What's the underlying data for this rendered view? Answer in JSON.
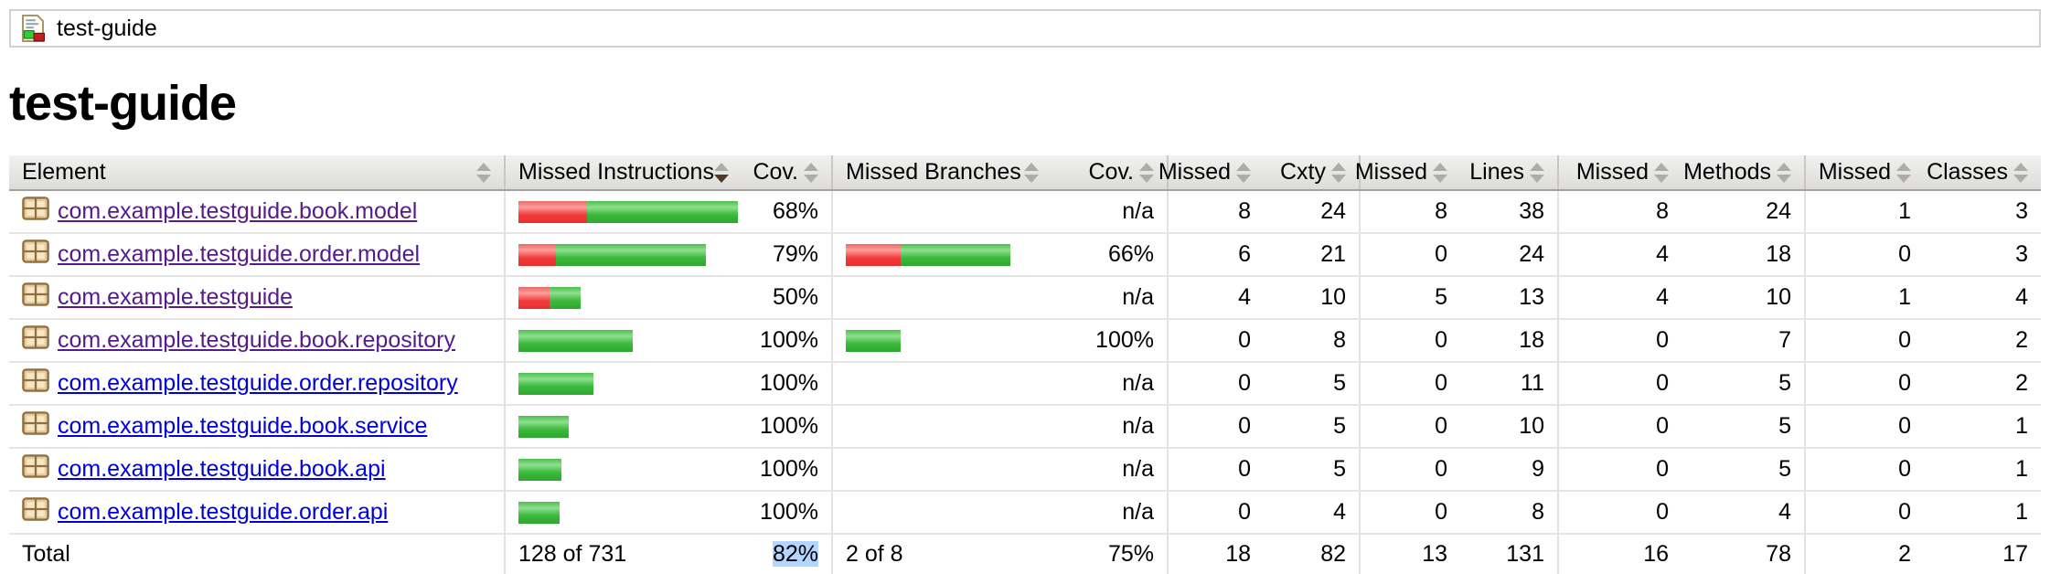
{
  "breadcrumb": {
    "title": "test-guide",
    "icon": "report-icon"
  },
  "page": {
    "heading": "test-guide"
  },
  "colors": {
    "link_unvisited": "#0000dd",
    "link_visited": "#551a8b",
    "selection_highlight": "#b4d5fd",
    "bar_red": "#f23d3d",
    "bar_green": "#3cba3c"
  },
  "table": {
    "headers": [
      {
        "label": "Element",
        "align": "left",
        "sort": "none"
      },
      {
        "label": "Missed Instructions",
        "align": "left",
        "sort": "desc"
      },
      {
        "label": "Cov.",
        "align": "right",
        "sort": "none"
      },
      {
        "label": "Missed Branches",
        "align": "left",
        "sort": "none"
      },
      {
        "label": "Cov.",
        "align": "right",
        "sort": "none"
      },
      {
        "label": "Missed",
        "align": "right",
        "sort": "none"
      },
      {
        "label": "Cxty",
        "align": "right",
        "sort": "none"
      },
      {
        "label": "Missed",
        "align": "right",
        "sort": "none"
      },
      {
        "label": "Lines",
        "align": "right",
        "sort": "none"
      },
      {
        "label": "Missed",
        "align": "right",
        "sort": "none"
      },
      {
        "label": "Methods",
        "align": "right",
        "sort": "none"
      },
      {
        "label": "Missed",
        "align": "right",
        "sort": "none"
      },
      {
        "label": "Classes",
        "align": "right",
        "sort": "none"
      }
    ],
    "rows": [
      {
        "element": "com.example.testguide.book.model",
        "visited": true,
        "instr_bar": {
          "red": 75,
          "green": 165
        },
        "instr_cov": "68%",
        "branch_bar": {
          "red": 0,
          "green": 0
        },
        "branch_cov": "n/a",
        "missed_cxty": "8",
        "cxty": "24",
        "missed_lines": "8",
        "lines": "38",
        "missed_methods": "8",
        "methods": "24",
        "missed_classes": "1",
        "classes": "3"
      },
      {
        "element": "com.example.testguide.order.model",
        "visited": true,
        "instr_bar": {
          "red": 41,
          "green": 164
        },
        "instr_cov": "79%",
        "branch_bar": {
          "red": 60,
          "green": 120
        },
        "branch_cov": "66%",
        "missed_cxty": "6",
        "cxty": "21",
        "missed_lines": "0",
        "lines": "24",
        "missed_methods": "4",
        "methods": "18",
        "missed_classes": "0",
        "classes": "3"
      },
      {
        "element": "com.example.testguide",
        "visited": true,
        "instr_bar": {
          "red": 34,
          "green": 34
        },
        "instr_cov": "50%",
        "branch_bar": {
          "red": 0,
          "green": 0
        },
        "branch_cov": "n/a",
        "missed_cxty": "4",
        "cxty": "10",
        "missed_lines": "5",
        "lines": "13",
        "missed_methods": "4",
        "methods": "10",
        "missed_classes": "1",
        "classes": "4"
      },
      {
        "element": "com.example.testguide.book.repository",
        "visited": true,
        "instr_bar": {
          "red": 0,
          "green": 125
        },
        "instr_cov": "100%",
        "branch_bar": {
          "red": 0,
          "green": 60
        },
        "branch_cov": "100%",
        "missed_cxty": "0",
        "cxty": "8",
        "missed_lines": "0",
        "lines": "18",
        "missed_methods": "0",
        "methods": "7",
        "missed_classes": "0",
        "classes": "2"
      },
      {
        "element": "com.example.testguide.order.repository",
        "visited": false,
        "instr_bar": {
          "red": 0,
          "green": 82
        },
        "instr_cov": "100%",
        "branch_bar": {
          "red": 0,
          "green": 0
        },
        "branch_cov": "n/a",
        "missed_cxty": "0",
        "cxty": "5",
        "missed_lines": "0",
        "lines": "11",
        "missed_methods": "0",
        "methods": "5",
        "missed_classes": "0",
        "classes": "2"
      },
      {
        "element": "com.example.testguide.book.service",
        "visited": false,
        "instr_bar": {
          "red": 0,
          "green": 55
        },
        "instr_cov": "100%",
        "branch_bar": {
          "red": 0,
          "green": 0
        },
        "branch_cov": "n/a",
        "missed_cxty": "0",
        "cxty": "5",
        "missed_lines": "0",
        "lines": "10",
        "missed_methods": "0",
        "methods": "5",
        "missed_classes": "0",
        "classes": "1"
      },
      {
        "element": "com.example.testguide.book.api",
        "visited": false,
        "instr_bar": {
          "red": 0,
          "green": 47
        },
        "instr_cov": "100%",
        "branch_bar": {
          "red": 0,
          "green": 0
        },
        "branch_cov": "n/a",
        "missed_cxty": "0",
        "cxty": "5",
        "missed_lines": "0",
        "lines": "9",
        "missed_methods": "0",
        "methods": "5",
        "missed_classes": "0",
        "classes": "1"
      },
      {
        "element": "com.example.testguide.order.api",
        "visited": false,
        "instr_bar": {
          "red": 0,
          "green": 45
        },
        "instr_cov": "100%",
        "branch_bar": {
          "red": 0,
          "green": 0
        },
        "branch_cov": "n/a",
        "missed_cxty": "0",
        "cxty": "4",
        "missed_lines": "0",
        "lines": "8",
        "missed_methods": "0",
        "methods": "4",
        "missed_classes": "0",
        "classes": "1"
      }
    ],
    "total": {
      "label": "Total",
      "instr": "128 of 731",
      "instr_cov": "82%",
      "instr_cov_selected": true,
      "branches": "2 of 8",
      "branch_cov": "75%",
      "missed_cxty": "18",
      "cxty": "82",
      "missed_lines": "13",
      "lines": "131",
      "missed_methods": "16",
      "methods": "78",
      "missed_classes": "2",
      "classes": "17"
    }
  }
}
